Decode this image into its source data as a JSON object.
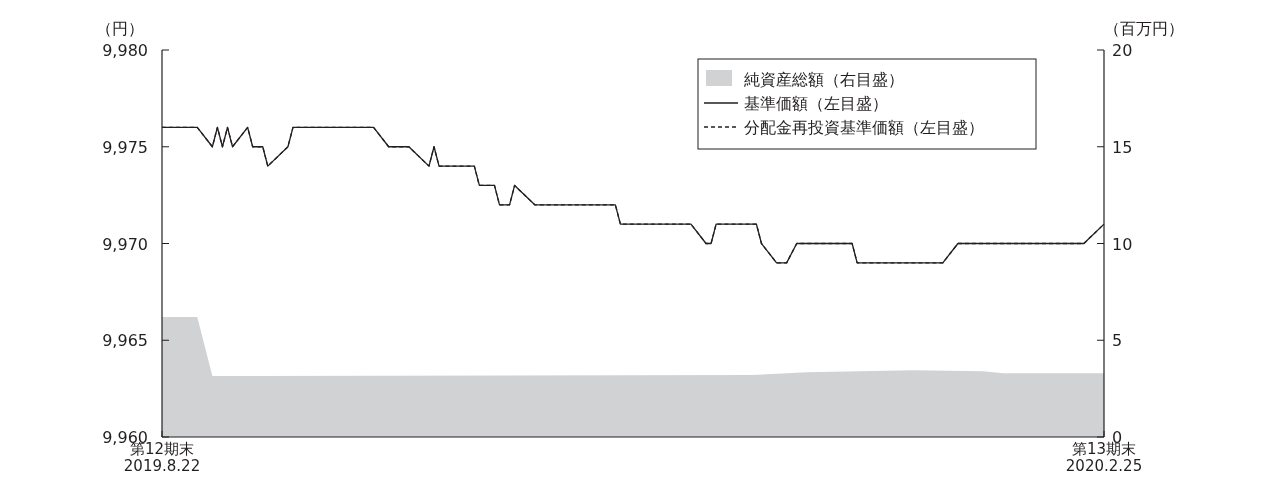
{
  "chart_data": {
    "type": "line",
    "ylabel": "（円）",
    "y2label": "（百万円）",
    "legend": "top right",
    "grid": false,
    "xlim": [
      "2019-08-22",
      "2020-02-25"
    ],
    "xticks": [
      {
        "value": "2019-08-22",
        "label": "第12期末\n2019.8.22"
      },
      {
        "value": "2020-02-25",
        "label": "第13期末\n2020.2.25"
      }
    ],
    "ylim": [
      9960,
      9980
    ],
    "yticks": [
      {
        "value": 9960,
        "label": "9,960"
      },
      {
        "value": 9965,
        "label": "9,965"
      },
      {
        "value": 9970,
        "label": "9,970"
      },
      {
        "value": 9975,
        "label": "9,975"
      },
      {
        "value": 9980,
        "label": "9,980"
      }
    ],
    "y2lim": [
      0,
      20
    ],
    "y2ticks": [
      0,
      5,
      10,
      15,
      20
    ],
    "series": [
      {
        "name": "純資産総額（右目盛）",
        "type": "area",
        "axis": "y2",
        "color": "#d1d2d4",
        "x": [
          "2019-08-22",
          "2019-08-29",
          "2019-09-01",
          "2019-12-17",
          "2019-12-28",
          "2020-01-18",
          "2020-02-01",
          "2020-02-05",
          "2020-02-25"
        ],
        "values": [
          6.2,
          6.2,
          3.15,
          3.2,
          3.35,
          3.45,
          3.4,
          3.3,
          3.3
        ]
      },
      {
        "name": "基準価額（左目盛）",
        "line_style": "solid",
        "color": "#231f20",
        "x": [
          "2019-08-22",
          "2019-08-29",
          "2019-09-01",
          "2019-09-02",
          "2019-09-03",
          "2019-09-04",
          "2019-09-05",
          "2019-09-08",
          "2019-09-09",
          "2019-09-11",
          "2019-09-12",
          "2019-09-16",
          "2019-09-17",
          "2019-10-03",
          "2019-10-06",
          "2019-10-10",
          "2019-10-14",
          "2019-10-15",
          "2019-10-16",
          "2019-10-23",
          "2019-10-24",
          "2019-10-27",
          "2019-10-28",
          "2019-10-30",
          "2019-10-31",
          "2019-11-04",
          "2019-11-20",
          "2019-11-21",
          "2019-12-05",
          "2019-12-08",
          "2019-12-09",
          "2019-12-10",
          "2019-12-18",
          "2019-12-19",
          "2019-12-22",
          "2019-12-24",
          "2019-12-26",
          "2020-01-06",
          "2020-01-07",
          "2020-01-24",
          "2020-01-27",
          "2020-02-21",
          "2020-02-25"
        ],
        "values": [
          9976,
          9976,
          9975,
          9976,
          9975,
          9976,
          9975,
          9976,
          9975,
          9975,
          9974,
          9975,
          9976,
          9976,
          9975,
          9975,
          9974,
          9975,
          9974,
          9974,
          9973,
          9973,
          9972,
          9972,
          9973,
          9972,
          9972,
          9971,
          9971,
          9970,
          9970,
          9971,
          9971,
          9970,
          9969,
          9969,
          9970,
          9970,
          9969,
          9969,
          9970,
          9970,
          9971
        ]
      },
      {
        "name": "分配金再投資基準価額（左目盛）",
        "line_style": "dashed",
        "color": "#231f20",
        "x": [
          "2019-08-22",
          "2019-08-29",
          "2019-09-01",
          "2019-09-02",
          "2019-09-03",
          "2019-09-04",
          "2019-09-05",
          "2019-09-08",
          "2019-09-09",
          "2019-09-11",
          "2019-09-12",
          "2019-09-16",
          "2019-09-17",
          "2019-10-03",
          "2019-10-06",
          "2019-10-10",
          "2019-10-14",
          "2019-10-15",
          "2019-10-16",
          "2019-10-23",
          "2019-10-24",
          "2019-10-27",
          "2019-10-28",
          "2019-10-30",
          "2019-10-31",
          "2019-11-04",
          "2019-11-20",
          "2019-11-21",
          "2019-12-05",
          "2019-12-08",
          "2019-12-09",
          "2019-12-10",
          "2019-12-18",
          "2019-12-19",
          "2019-12-22",
          "2019-12-24",
          "2019-12-26",
          "2020-01-06",
          "2020-01-07",
          "2020-01-24",
          "2020-01-27",
          "2020-02-21",
          "2020-02-25"
        ],
        "values": [
          9976,
          9976,
          9975,
          9976,
          9975,
          9976,
          9975,
          9976,
          9975,
          9975,
          9974,
          9975,
          9976,
          9976,
          9975,
          9975,
          9974,
          9975,
          9974,
          9974,
          9973,
          9973,
          9972,
          9972,
          9973,
          9972,
          9972,
          9971,
          9971,
          9970,
          9970,
          9971,
          9971,
          9970,
          9969,
          9969,
          9970,
          9970,
          9969,
          9969,
          9970,
          9970,
          9971
        ]
      }
    ]
  }
}
